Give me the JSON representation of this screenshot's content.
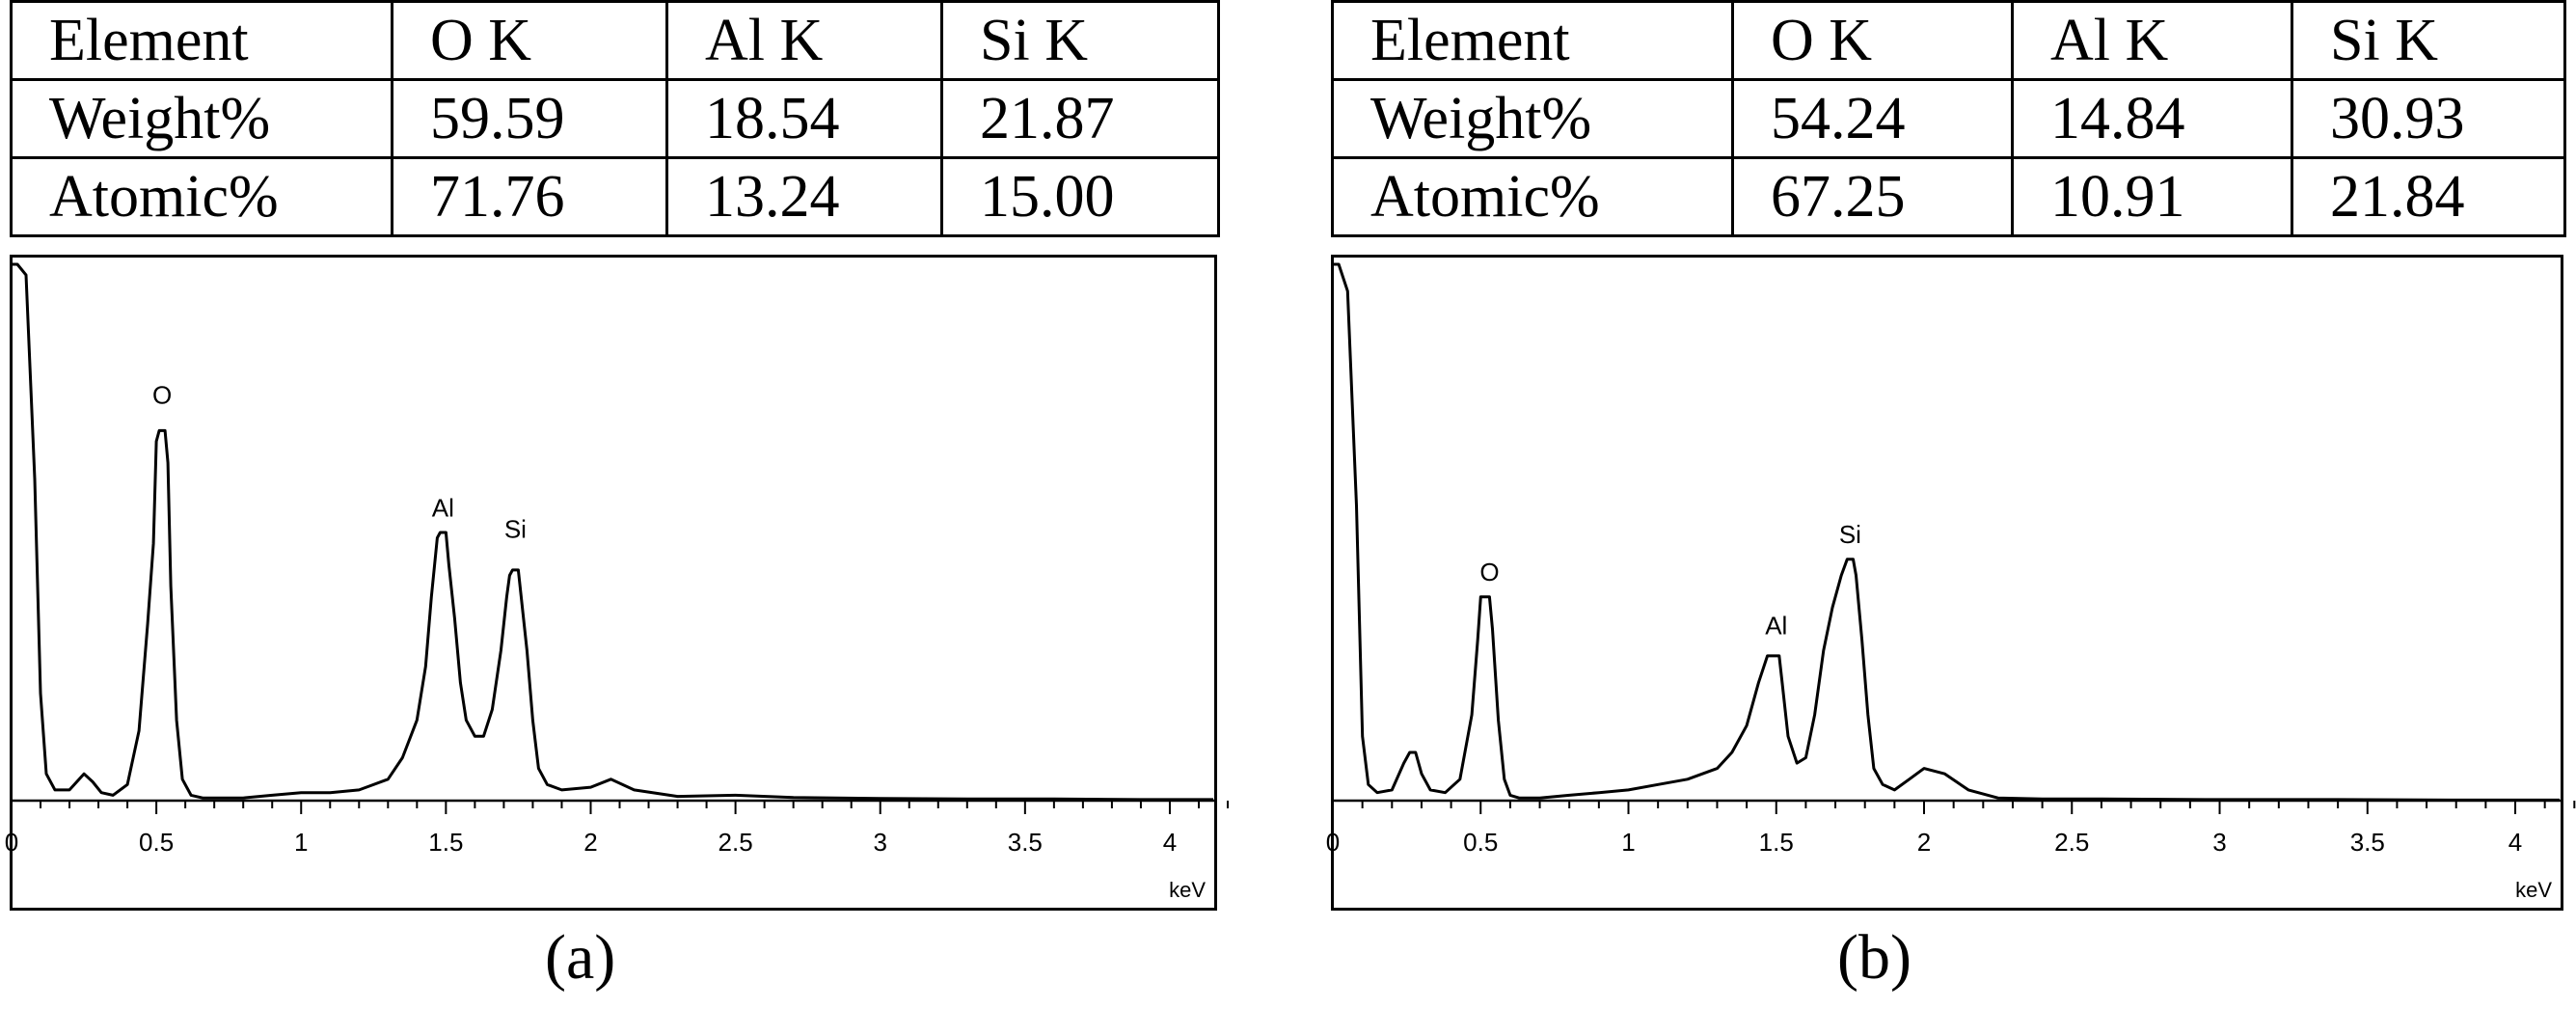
{
  "chart_data": [
    {
      "type": "line",
      "caption": "(a)",
      "table": {
        "headers": [
          "Element",
          "O K",
          "Al K",
          "Si K"
        ],
        "rows": [
          [
            "Weight%",
            "59.59",
            "18.54",
            "21.87"
          ],
          [
            "Atomic%",
            "71.76",
            "13.24",
            "15.00"
          ]
        ]
      },
      "xlabel": "keV",
      "xlim": [
        0,
        4.15
      ],
      "ylim": [
        0,
        100
      ],
      "x_ticks": [
        "0",
        "0.5",
        "1",
        "1.5",
        "2",
        "2.5",
        "3",
        "3.5",
        "4"
      ],
      "x_tick_values": [
        0,
        0.5,
        1,
        1.5,
        2,
        2.5,
        3,
        3.5,
        4
      ],
      "annotations": [
        {
          "text": "O",
          "x": 0.52,
          "y": 74
        },
        {
          "text": "Al",
          "x": 1.49,
          "y": 53
        },
        {
          "text": "Si",
          "x": 1.74,
          "y": 49
        }
      ],
      "series": [
        {
          "x": [
            0.0,
            0.02,
            0.05,
            0.08,
            0.1,
            0.12,
            0.15,
            0.2,
            0.25,
            0.28,
            0.31,
            0.35,
            0.4,
            0.44,
            0.47,
            0.49,
            0.5,
            0.51,
            0.53,
            0.54,
            0.55,
            0.57,
            0.59,
            0.62,
            0.66,
            0.7,
            0.8,
            0.9,
            1.0,
            1.1,
            1.2,
            1.3,
            1.35,
            1.4,
            1.43,
            1.45,
            1.47,
            1.48,
            1.5,
            1.51,
            1.53,
            1.55,
            1.57,
            1.6,
            1.63,
            1.66,
            1.69,
            1.71,
            1.72,
            1.73,
            1.75,
            1.76,
            1.78,
            1.8,
            1.82,
            1.85,
            1.9,
            2.0,
            2.07,
            2.15,
            2.3,
            2.5,
            2.7,
            3.0,
            3.3,
            3.6,
            3.9,
            4.15
          ],
          "y": [
            100,
            100,
            98,
            60,
            20,
            5,
            2,
            2,
            5,
            3.5,
            1.5,
            1,
            3,
            13,
            33,
            48,
            67,
            69,
            69,
            63,
            40,
            15,
            4,
            1,
            0.5,
            0.5,
            0.5,
            1,
            1.5,
            1.5,
            2,
            4,
            8,
            15,
            25,
            38,
            49,
            50,
            50,
            44,
            34,
            22,
            15,
            12,
            12,
            17,
            28,
            38,
            42,
            43,
            43,
            38,
            28,
            15,
            6,
            3,
            2,
            2.5,
            4,
            2,
            0.8,
            1,
            0.6,
            0.4,
            0.3,
            0.3,
            0.2,
            0.2
          ]
        }
      ]
    },
    {
      "type": "line",
      "caption": "(b)",
      "table": {
        "headers": [
          "Element",
          "O K",
          "Al K",
          "Si K"
        ],
        "rows": [
          [
            "Weight%",
            "54.24",
            "14.84",
            "30.93"
          ],
          [
            "Atomic%",
            "67.25",
            "10.91",
            "21.84"
          ]
        ]
      },
      "xlabel": "keV",
      "xlim": [
        0,
        4.15
      ],
      "ylim": [
        0,
        100
      ],
      "x_ticks": [
        "0",
        "0.5",
        "1",
        "1.5",
        "2",
        "2.5",
        "3",
        "3.5",
        "4"
      ],
      "x_tick_values": [
        0,
        0.5,
        1,
        1.5,
        2,
        2.5,
        3,
        3.5,
        4
      ],
      "annotations": [
        {
          "text": "O",
          "x": 0.53,
          "y": 41
        },
        {
          "text": "Al",
          "x": 1.5,
          "y": 31
        },
        {
          "text": "Si",
          "x": 1.75,
          "y": 48
        }
      ],
      "series": [
        {
          "x": [
            0.0,
            0.02,
            0.05,
            0.08,
            0.1,
            0.12,
            0.15,
            0.2,
            0.24,
            0.26,
            0.28,
            0.3,
            0.33,
            0.38,
            0.43,
            0.47,
            0.49,
            0.5,
            0.52,
            0.53,
            0.54,
            0.56,
            0.58,
            0.6,
            0.63,
            0.7,
            0.8,
            0.9,
            1.0,
            1.1,
            1.2,
            1.3,
            1.35,
            1.4,
            1.44,
            1.47,
            1.49,
            1.51,
            1.52,
            1.54,
            1.57,
            1.6,
            1.63,
            1.66,
            1.69,
            1.72,
            1.74,
            1.76,
            1.77,
            1.79,
            1.81,
            1.83,
            1.86,
            1.9,
            1.95,
            2.0,
            2.07,
            2.15,
            2.25,
            2.4,
            2.6,
            3.0,
            3.4,
            3.8,
            4.15
          ],
          "y": [
            100,
            100,
            95,
            55,
            12,
            3,
            1.5,
            2,
            7,
            9,
            9,
            5,
            2,
            1.5,
            4,
            16,
            30,
            38,
            38,
            38,
            32,
            15,
            4,
            1,
            0.5,
            0.5,
            1,
            1.5,
            2,
            3,
            4,
            6,
            9,
            14,
            22,
            27,
            27,
            27,
            22,
            12,
            7,
            8,
            16,
            28,
            36,
            42,
            45,
            45,
            42,
            30,
            16,
            6,
            3,
            2,
            4,
            6,
            5,
            2,
            0.5,
            0.3,
            0.3,
            0.2,
            0.2,
            0.1,
            0.1
          ]
        }
      ]
    }
  ]
}
